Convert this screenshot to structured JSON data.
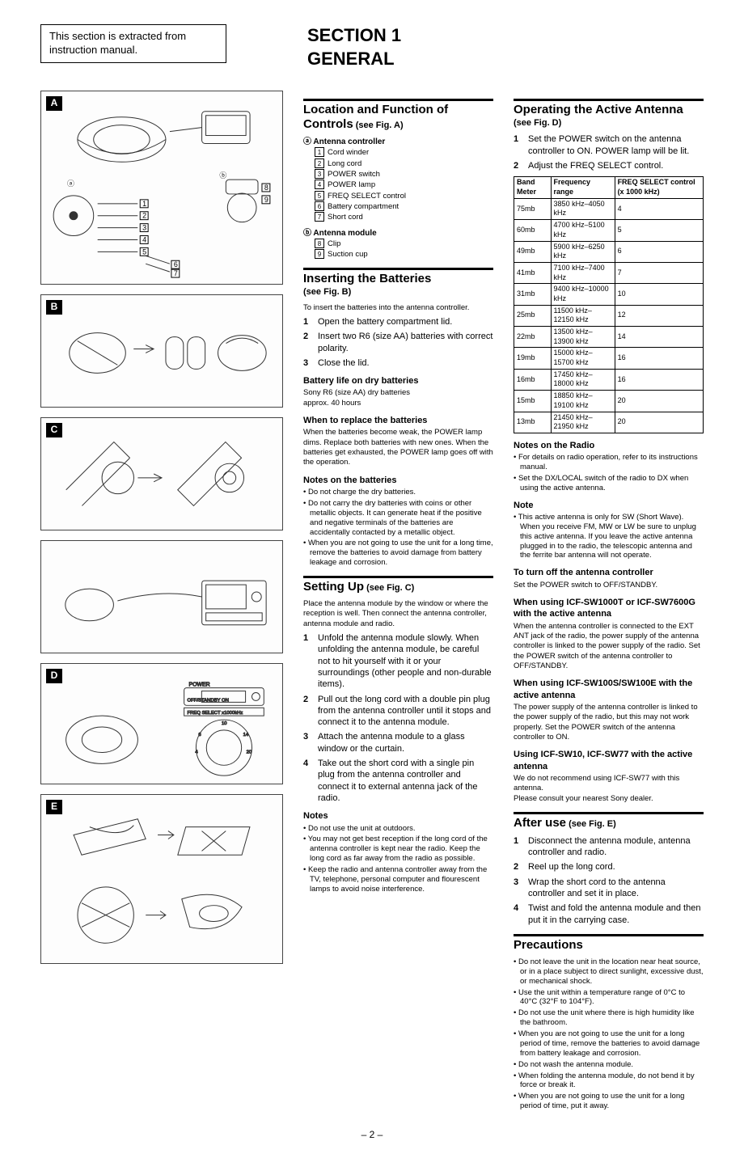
{
  "extract_note": "This section is extracted from instruction manual.",
  "section_title_1": "SECTION 1",
  "section_title_2": "GENERAL",
  "figs": [
    "A",
    "B",
    "C",
    "D",
    "E"
  ],
  "loc_func": {
    "title": "Location and Function of Controls",
    "ref": "(see Fig. A)",
    "group_a": "ⓐ Antenna controller",
    "parts_a": [
      "Cord winder",
      "Long cord",
      "POWER switch",
      "POWER lamp",
      "FREQ SELECT control",
      "Battery compartment",
      "Short cord"
    ],
    "group_b": "ⓑ Antenna module",
    "parts_b": [
      "Clip",
      "Suction cup"
    ]
  },
  "inserting": {
    "title": "Inserting the Batteries",
    "ref": "(see Fig. B)",
    "intro": "To insert the batteries into the antenna controller.",
    "steps": [
      "Open the battery compartment lid.",
      "Insert two R6 (size AA) batteries with correct polarity.",
      "Close the lid."
    ],
    "batt_life_h": "Battery life on dry batteries",
    "batt_life_1": "Sony R6 (size AA) dry batteries",
    "batt_life_2": "approx. 40 hours",
    "replace_h": "When to replace the batteries",
    "replace_t": "When the batteries become weak, the POWER lamp dims. Replace both batteries with new ones. When the batteries get exhausted, the POWER lamp goes off with the operation.",
    "notes_h": "Notes on the batteries",
    "notes": [
      "Do not charge the dry batteries.",
      "Do not carry the dry batteries with coins or other metallic objects. It can generate heat if the positive and negative terminals of the batteries are accidentally contacted by a metallic object.",
      "When you are not going to use the unit for a long time, remove the batteries to avoid damage from battery leakage and corrosion."
    ]
  },
  "setting": {
    "title": "Setting Up",
    "ref": "(see Fig. C)",
    "intro": "Place the antenna module by the window or where the reception is well. Then connect the antenna controller, antenna module and radio.",
    "steps": [
      "Unfold the antenna module slowly. When unfolding the antenna module, be careful not to hit yourself with it or your surroundings (other people and non-durable items).",
      "Pull out the long cord with a double pin plug from the antenna controller until it stops and connect it to the antenna module.",
      "Attach the antenna module to a glass window or the curtain.",
      "Take out the short cord with a single pin plug from the antenna controller and connect it to external antenna jack of the radio."
    ],
    "notes_h": "Notes",
    "notes": [
      "Do not use the unit at outdoors.",
      "You may not get best reception if the long cord of the antenna controller is kept near the radio. Keep the long cord as far away from the radio as possible.",
      "Keep the radio and antenna controller away from the TV, telephone, personal computer and flourescent lamps to avoid noise interference."
    ]
  },
  "operating": {
    "title": "Operating the Active Antenna",
    "ref": "(see Fig. D)",
    "steps": [
      "Set the POWER switch on the antenna controller to ON. POWER lamp will be lit.",
      "Adjust the FREQ SELECT control."
    ],
    "table": {
      "head": [
        "Band Meter",
        "Frequency range",
        "FREQ SELECT control (x 1000 kHz)"
      ],
      "rows": [
        [
          "75mb",
          "3850 kHz–4050 kHz",
          "4"
        ],
        [
          "60mb",
          "4700 kHz–5100 kHz",
          "5"
        ],
        [
          "49mb",
          "5900 kHz–6250 kHz",
          "6"
        ],
        [
          "41mb",
          "7100 kHz–7400 kHz",
          "7"
        ],
        [
          "31mb",
          "9400 kHz–10000 kHz",
          "10"
        ],
        [
          "25mb",
          "11500 kHz–12150 kHz",
          "12"
        ],
        [
          "22mb",
          "13500 kHz–13900 kHz",
          "14"
        ],
        [
          "19mb",
          "15000 kHz–15700 kHz",
          "16"
        ],
        [
          "16mb",
          "17450 kHz–18000 kHz",
          "16"
        ],
        [
          "15mb",
          "18850 kHz–19100 kHz",
          "20"
        ],
        [
          "13mb",
          "21450 kHz–21950 kHz",
          "20"
        ]
      ]
    },
    "notes_radio_h": "Notes on the Radio",
    "notes_radio": [
      "For details on radio operation, refer to its instructions manual.",
      "Set the DX/LOCAL switch of the radio to DX when using the active antenna."
    ],
    "note_h": "Note",
    "note": [
      "This active antenna is only for SW (Short Wave). When you receive FM, MW or LW be sure to unplug this active antenna. If you leave the active antenna plugged in to the radio, the telescopic antenna and the ferrite bar antenna will not operate."
    ],
    "turnoff_h": "To turn off the antenna controller",
    "turnoff_t": "Set the POWER switch to OFF/STANDBY.",
    "sw1000_h": "When using ICF-SW1000T or ICF-SW7600G with the active antenna",
    "sw1000_t": "When the antenna controller is connected to the EXT ANT jack of the radio, the power supply of the antenna controller is linked to the power supply of the radio. Set the POWER switch of the antenna controller to OFF/STANDBY.",
    "sw100_h": "When using ICF-SW100S/SW100E with the active antenna",
    "sw100_t": "The power supply of the antenna controller is linked to the power supply of the radio, but this may not work properly. Set the POWER switch of the antenna controller to ON.",
    "sw10_h": "Using ICF-SW10, ICF-SW77 with the active antenna",
    "sw10_t1": "We do not recommend using ICF-SW77 with this antenna.",
    "sw10_t2": "Please consult your nearest Sony dealer."
  },
  "after": {
    "title": "After use",
    "ref": "(see Fig. E)",
    "steps": [
      "Disconnect the antenna module, antenna controller and radio.",
      "Reel up the long cord.",
      "Wrap the short cord to the antenna controller and set it in place.",
      "Twist and fold the antenna module and then put it in the carrying case."
    ]
  },
  "precautions": {
    "title": "Precautions",
    "items": [
      "Do not leave the unit in the location near heat source, or in a place subject to direct sunlight, excessive dust, or mechanical shock.",
      "Use the unit within a temperature range of 0°C to 40°C (32°F to 104°F).",
      "Do not use the unit where there is high humidity like the bathroom.",
      "When you are not going to use the unit for a long period of time, remove the batteries to avoid damage from battery leakage and corrosion.",
      "Do not wash the antenna module.",
      "When folding the antenna module, do not bend it by force or break it.",
      "When you are not going to use the unit for a long period of time, put it away."
    ]
  },
  "pagenum": "– 2 –"
}
